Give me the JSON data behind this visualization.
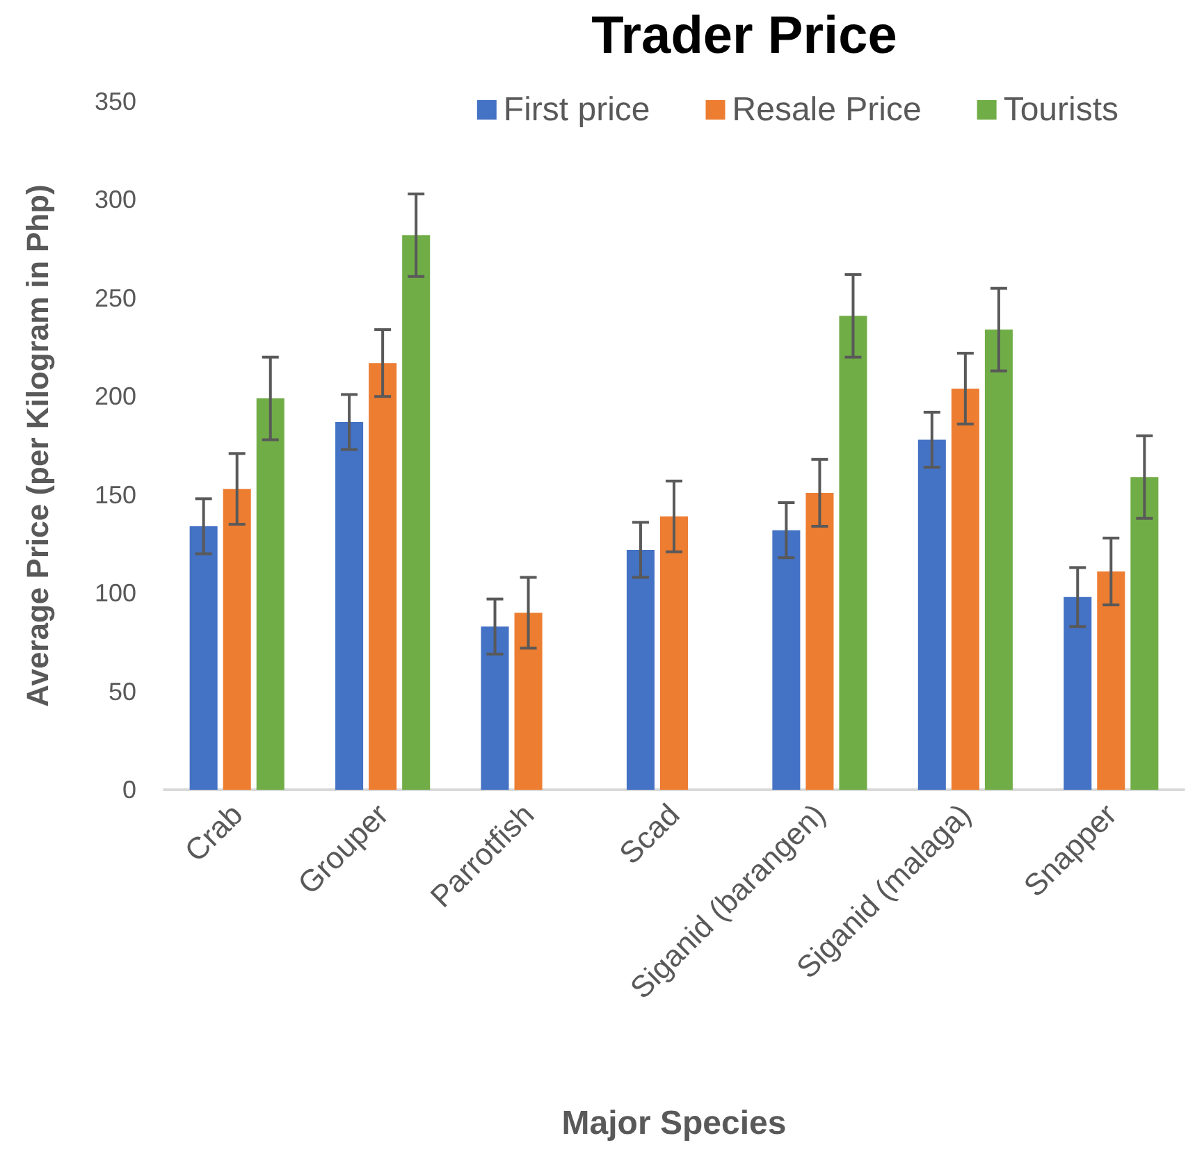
{
  "chart_data": {
    "type": "bar",
    "title": "Trader Price",
    "xlabel": "Major Species",
    "ylabel": "Average Price (per Kilogram in Php)",
    "categories": [
      "Crab",
      "Grouper",
      "Parrotfish",
      "Scad",
      "Siganid (barangen)",
      "Siganid (malaga)",
      "Snapper"
    ],
    "series": [
      {
        "name": "First price",
        "color": "#4472c4",
        "values": [
          134,
          187,
          83,
          122,
          132,
          178,
          98
        ],
        "errors": [
          14,
          14,
          14,
          14,
          14,
          14,
          15
        ]
      },
      {
        "name": "Resale Price",
        "color": "#ed7d31",
        "values": [
          153,
          217,
          90,
          139,
          151,
          204,
          111
        ],
        "errors": [
          18,
          17,
          18,
          18,
          17,
          18,
          17
        ]
      },
      {
        "name": "Tourists",
        "color": "#70ad47",
        "values": [
          199,
          282,
          null,
          null,
          241,
          234,
          159
        ],
        "errors": [
          21,
          21,
          null,
          null,
          21,
          21,
          21
        ]
      }
    ],
    "ylim": [
      0,
      350
    ],
    "yticks": [
      0,
      50,
      100,
      150,
      200,
      250,
      300,
      350
    ],
    "grid": false,
    "legend": "top right"
  }
}
